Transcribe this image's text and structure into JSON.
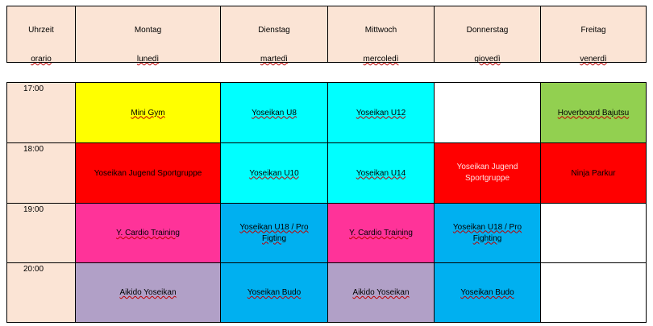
{
  "header": {
    "columns": [
      {
        "de": "Uhrzeit",
        "it": "orario"
      },
      {
        "de": "Montag",
        "it": "lunedì"
      },
      {
        "de": "Dienstag",
        "it": "martedì"
      },
      {
        "de": "Mittwoch",
        "it": "mercoledì"
      },
      {
        "de": "Donnerstag",
        "it": "giovedì"
      },
      {
        "de": "Freitag",
        "it": "venerdì"
      }
    ]
  },
  "rows": [
    {
      "time": "17:00",
      "cells": [
        "Mini Gym",
        "Yoseikan U8",
        "Yoseikan U12",
        "",
        "Hoverboard Bajutsu"
      ]
    },
    {
      "time": "18:00",
      "cells": [
        "Yoseikan Jugend Sportgruppe",
        "Yoseikan U10",
        "Yoseikan U14",
        "Yoseikan Jugend Sportgruppe",
        "Ninja Parkur"
      ]
    },
    {
      "time": "19:00",
      "cells": [
        "Y. Cardio Training",
        "Yoseikan U18 / Pro Figting",
        "Y. Cardio Training",
        "Yoseikan U18 / Pro Fighting",
        ""
      ]
    },
    {
      "time": "20:00",
      "cells": [
        "Aikido Yoseikan",
        "Yoseikan Budo",
        "Aikido Yoseikan",
        "Yoseikan Budo",
        ""
      ]
    }
  ],
  "colors": {
    "header": "#fbe4d5",
    "yellow": "#ffff00",
    "cyan": "#00ffff",
    "green": "#92d050",
    "red": "#ff0000",
    "pink": "#ff3399",
    "blue": "#00b0f0",
    "lilac": "#b1a0c7"
  }
}
